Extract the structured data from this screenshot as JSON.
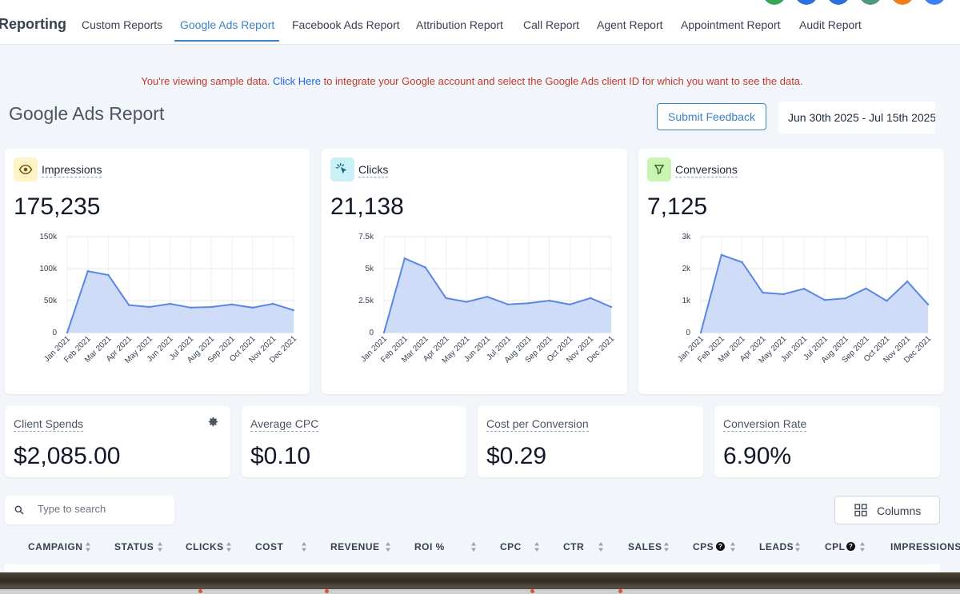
{
  "nav": {
    "brand": "Reporting",
    "tabs": [
      {
        "label": "Custom Reports"
      },
      {
        "label": "Google Ads Report"
      },
      {
        "label": "Facebook Ads Report"
      },
      {
        "label": "Attribution Report"
      },
      {
        "label": "Call Report"
      },
      {
        "label": "Agent Report"
      },
      {
        "label": "Appointment Report"
      },
      {
        "label": "Audit Report"
      }
    ],
    "active_tab": "Google Ads Report",
    "avatar_colors": [
      "#3aa655",
      "#2f6fe0",
      "#2f6fe0",
      "#4f9a7a",
      "#f07f1b",
      "#3b82f6",
      "#1f2937"
    ]
  },
  "banner": {
    "prefix": "You're viewing sample data.",
    "link": "Click Here",
    "suffix": "to integrate your Google account and select the Google Ads client ID for which you want to see the data."
  },
  "header": {
    "title": "Google Ads Report",
    "feedback_label": "Submit Feedback",
    "date_range": "Jun 30th 2025 - Jul 15th 2025"
  },
  "metrics": [
    {
      "label": "Impressions",
      "value": "175,235",
      "icon": "eye-icon",
      "icon_bg": "#fdf3c4",
      "chart_data": {
        "type": "area",
        "x": [
          "Jan 2021",
          "Feb 2021",
          "Mar 2021",
          "Apr 2021",
          "May 2021",
          "Jun 2021",
          "Jul 2021",
          "Aug 2021",
          "Sep 2021",
          "Oct 2021",
          "Nov 2021",
          "Dec 2021"
        ],
        "values": [
          0,
          96000,
          90000,
          43000,
          40000,
          45000,
          39000,
          40000,
          44000,
          39000,
          45000,
          35000
        ],
        "ylim": [
          0,
          150000
        ],
        "yticks": [
          "0",
          "50k",
          "100k",
          "150k"
        ],
        "yticks_values": [
          0,
          50000,
          100000,
          150000
        ],
        "grid": true,
        "color": "#5b86e5"
      }
    },
    {
      "label": "Clicks",
      "value": "21,138",
      "icon": "cursor-click-icon",
      "icon_bg": "#c9f1f7",
      "chart_data": {
        "type": "area",
        "x": [
          "Jan 2021",
          "Feb 2021",
          "Mar 2021",
          "Apr 2021",
          "May 2021",
          "Jun 2021",
          "Jul 2021",
          "Aug 2021",
          "Sep 2021",
          "Oct 2021",
          "Nov 2021",
          "Dec 2021"
        ],
        "values": [
          0,
          5800,
          5100,
          2700,
          2400,
          2800,
          2200,
          2300,
          2500,
          2200,
          2700,
          2000
        ],
        "ylim": [
          0,
          7500
        ],
        "yticks": [
          "0",
          "2.5k",
          "5k",
          "7.5k"
        ],
        "yticks_values": [
          0,
          2500,
          5000,
          7500
        ],
        "grid": true,
        "color": "#5b86e5"
      }
    },
    {
      "label": "Conversions",
      "value": "7,125",
      "icon": "funnel-icon",
      "icon_bg": "#c8f5b3",
      "chart_data": {
        "type": "area",
        "x": [
          "Jan 2021",
          "Feb 2021",
          "Mar 2021",
          "Apr 2021",
          "May 2021",
          "Jun 2021",
          "Jul 2021",
          "Aug 2021",
          "Sep 2021",
          "Oct 2021",
          "Nov 2021",
          "Dec 2021"
        ],
        "values": [
          0,
          2430,
          2200,
          1250,
          1200,
          1370,
          1020,
          1070,
          1380,
          990,
          1600,
          880
        ],
        "ylim": [
          0,
          3000
        ],
        "yticks": [
          "0",
          "1k",
          "2k",
          "3k"
        ],
        "yticks_values": [
          0,
          1000,
          2000,
          3000
        ],
        "grid": true,
        "color": "#5b86e5"
      }
    }
  ],
  "kpis": [
    {
      "label": "Client Spends",
      "value": "$2,085.00",
      "icon": "gear-icon"
    },
    {
      "label": "Average CPC",
      "value": "$0.10"
    },
    {
      "label": "Cost per Conversion",
      "value": "$0.29"
    },
    {
      "label": "Conversion Rate",
      "value": "6.90%"
    }
  ],
  "search": {
    "placeholder": "Type to search"
  },
  "columns_button": "Columns",
  "table": {
    "columns": [
      "CAMPAIGN",
      "STATUS",
      "CLICKS",
      "COST",
      "REVENUE",
      "ROI %",
      "CPC",
      "CTR",
      "SALES",
      "CPS",
      "LEADS",
      "CPL",
      "IMPRESSIONS"
    ]
  }
}
